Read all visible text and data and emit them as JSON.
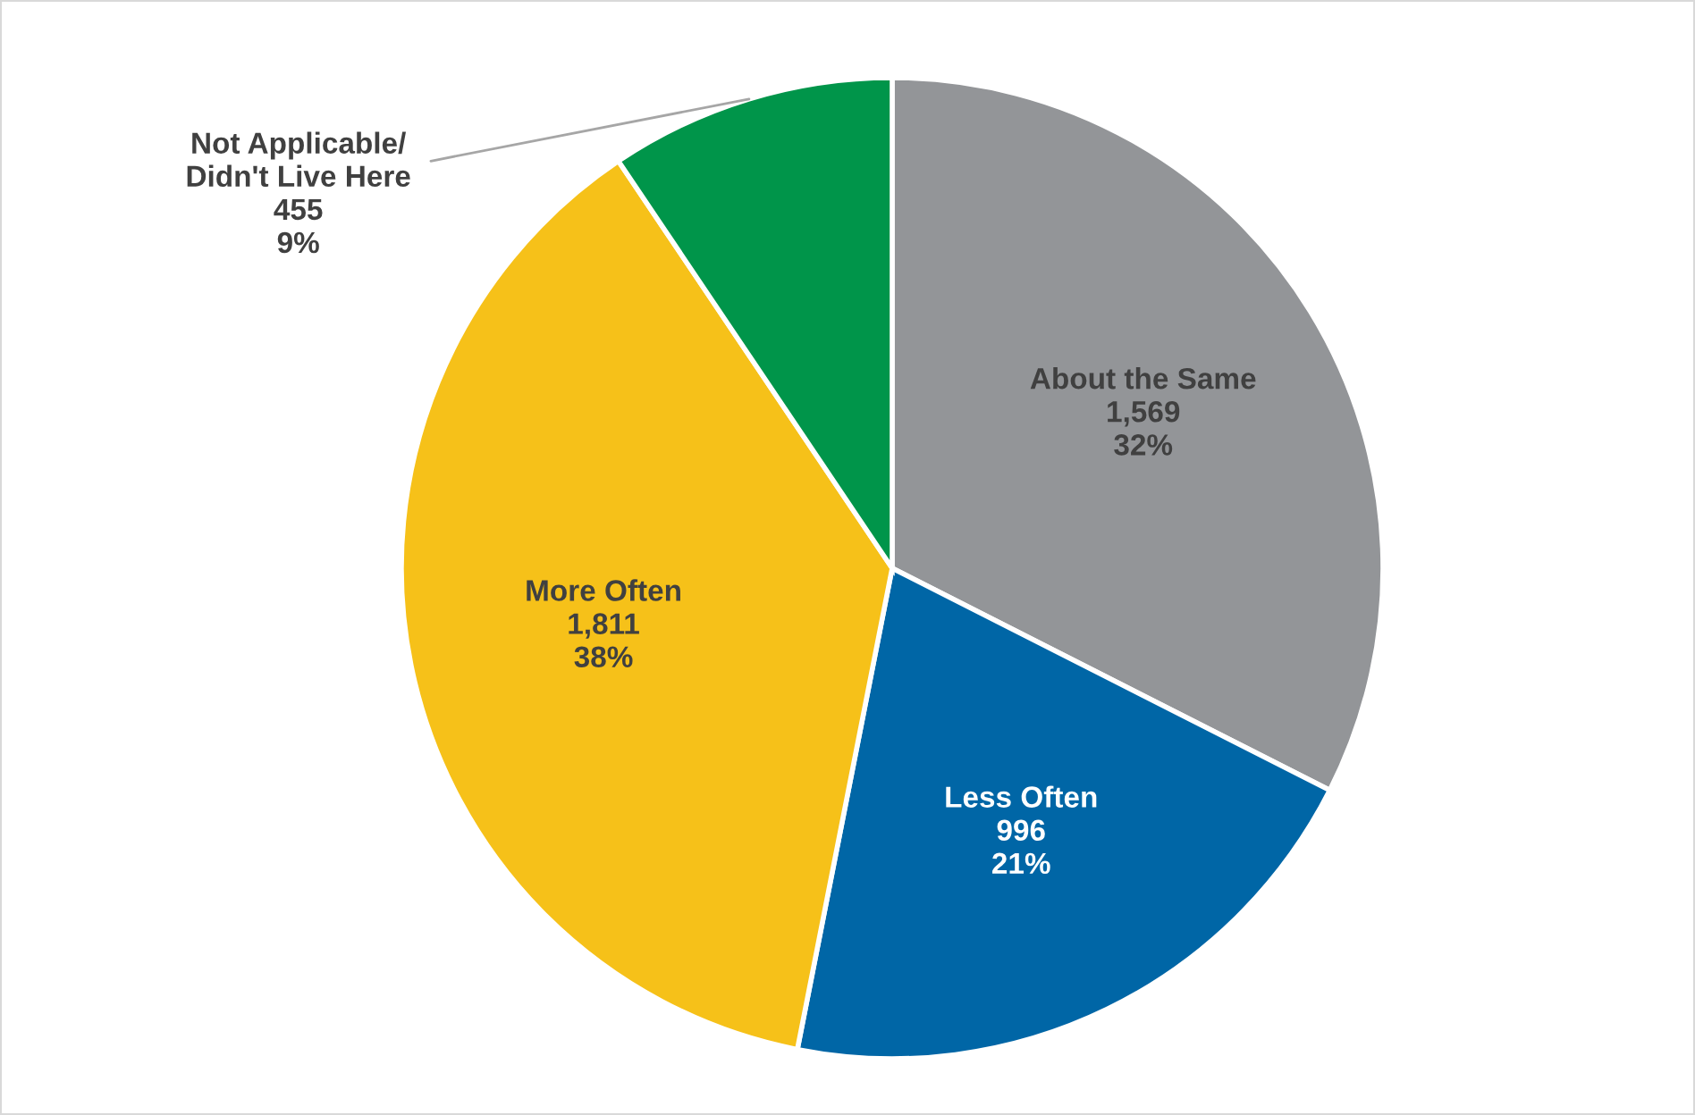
{
  "chart_data": {
    "type": "pie",
    "categories": [
      "About the Same",
      "Less Often",
      "More Often",
      "Not Applicable/\nDidn't Live Here"
    ],
    "values": [
      1569,
      996,
      1811,
      455
    ],
    "value_labels": [
      "1,569\n32%",
      "996\n21%",
      "1,811\n38%",
      "455\n9%"
    ],
    "colors": [
      "#939598",
      "#0066a6",
      "#f6c119",
      "#00954a"
    ],
    "legend": false
  }
}
